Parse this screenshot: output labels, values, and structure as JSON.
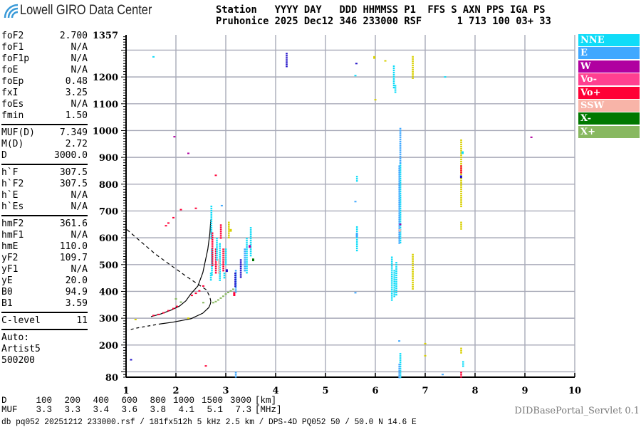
{
  "header": {
    "logo_text": "Lowell GIRO Data Center",
    "line1": "Station   YYYY DAY   DDD HHMMSS P1  FFS S AXN PPS IGA PS",
    "line2": "Pruhonice 2025 Dec12 346 233000 RSF      1 713 100 03+ 33"
  },
  "params": {
    "group1": [
      {
        "k": "foF2",
        "v": "2.700"
      },
      {
        "k": "foF1",
        "v": "N/A"
      },
      {
        "k": "foF1p",
        "v": "N/A"
      },
      {
        "k": "foE",
        "v": "N/A"
      },
      {
        "k": "foEp",
        "v": "0.48"
      },
      {
        "k": "fxI",
        "v": "3.25"
      },
      {
        "k": "foEs",
        "v": "N/A"
      },
      {
        "k": "fmin",
        "v": "1.50"
      }
    ],
    "group2": [
      {
        "k": "MUF(D)",
        "v": "7.349"
      },
      {
        "k": "M(D)",
        "v": "2.72"
      },
      {
        "k": "D",
        "v": "3000.0"
      }
    ],
    "group3": [
      {
        "k": "h`F",
        "v": "307.5"
      },
      {
        "k": "h`F2",
        "v": "307.5"
      },
      {
        "k": "h`E",
        "v": "N/A"
      },
      {
        "k": "h`Es",
        "v": "N/A"
      }
    ],
    "group4": [
      {
        "k": "hmF2",
        "v": "361.6"
      },
      {
        "k": "hmF1",
        "v": "N/A"
      },
      {
        "k": "hmE",
        "v": "110.0"
      },
      {
        "k": "yF2",
        "v": "109.7"
      },
      {
        "k": "yF1",
        "v": "N/A"
      },
      {
        "k": "yE",
        "v": "20.0"
      },
      {
        "k": "B0",
        "v": "94.9"
      },
      {
        "k": "B1",
        "v": "3.59"
      }
    ],
    "clevel": {
      "k": "C-level",
      "v": "11"
    },
    "auto": [
      "Auto:",
      "Artist5",
      "500200"
    ]
  },
  "legend": [
    {
      "label": "NNE",
      "color": "#10dcf8"
    },
    {
      "label": "E",
      "color": "#40a8ff"
    },
    {
      "label": "W",
      "color": "#b000a0"
    },
    {
      "label": "Vo-",
      "color": "#ff4090"
    },
    {
      "label": "Vo+",
      "color": "#ff0036"
    },
    {
      "label": "SSW",
      "color": "#f8b4a8"
    },
    {
      "label": "X-",
      "color": "#007800"
    },
    {
      "label": "X+",
      "color": "#88b860"
    }
  ],
  "extra_colors": {
    "unk": "#d8d000",
    "Wd": "#2010c8"
  },
  "muf_table": {
    "d_label": "D",
    "d_values": [
      "100",
      "200",
      "400",
      "600",
      "800",
      "1000",
      "1500",
      "3000"
    ],
    "d_unit": "[km]",
    "muf_label": "MUF",
    "muf_values": [
      "3.3",
      "3.3",
      "3.4",
      "3.6",
      "3.8",
      "4.1",
      "5.1",
      "7.3"
    ],
    "muf_unit": "[MHz]"
  },
  "footer": {
    "db_line": "db pq052 20251212 233000.rsf / 181fx512h 5 kHz 2.5 km / DPS-4D PQ052 50 / 50.0 N 14.6 E",
    "servlet": "DIDBasePortal_Servlet 0.1"
  },
  "chart_data": {
    "type": "scatter",
    "xlim": [
      1,
      10
    ],
    "ylim": [
      80,
      1357
    ],
    "x_ticks": [
      "1",
      "2",
      "3",
      "4",
      "5",
      "6",
      "7",
      "8",
      "9",
      "10"
    ],
    "y_ticks": [
      "1357",
      "1200",
      "1100",
      "1000",
      "900",
      "800",
      "700",
      "600",
      "500",
      "400",
      "300",
      "200",
      "80"
    ],
    "grid": true,
    "legend_placement": "right",
    "trace_fit": [
      [
        1.5,
        306
      ],
      [
        1.7,
        316
      ],
      [
        1.9,
        330
      ],
      [
        2.07,
        345
      ],
      [
        2.2,
        365
      ],
      [
        2.3,
        391
      ],
      [
        2.44,
        420
      ],
      [
        2.54,
        470
      ],
      [
        2.64,
        558
      ],
      [
        2.68,
        615
      ],
      [
        2.7,
        669
      ]
    ],
    "profile": [
      [
        1.04,
        255
      ],
      [
        1.2,
        263
      ],
      [
        1.44,
        271
      ],
      [
        1.7,
        279
      ],
      [
        1.93,
        285
      ],
      [
        2.3,
        298
      ],
      [
        2.54,
        319
      ],
      [
        2.66,
        340
      ],
      [
        2.69,
        353
      ],
      [
        2.7,
        362
      ]
    ],
    "topside": [
      [
        2.7,
        362
      ],
      [
        2.68,
        380
      ],
      [
        2.61,
        406
      ],
      [
        2.4,
        432
      ],
      [
        2.21,
        456
      ],
      [
        1.9,
        497
      ],
      [
        1.59,
        539
      ],
      [
        1.3,
        585
      ],
      [
        1.01,
        632
      ]
    ],
    "echoes": [
      [
        1.55,
        310,
        310,
        "Vo+"
      ],
      [
        1.65,
        314,
        314,
        "Vo+"
      ],
      [
        1.75,
        320,
        320,
        "Vo+"
      ],
      [
        1.85,
        328,
        328,
        "Vo+"
      ],
      [
        1.95,
        336,
        336,
        "Vo+"
      ],
      [
        2.02,
        344,
        344,
        "Vo+"
      ],
      [
        2.32,
        385,
        385,
        "Vo+"
      ],
      [
        2.4,
        393,
        393,
        "Vo+"
      ],
      [
        2.47,
        402,
        402,
        "Vo+"
      ],
      [
        2.55,
        420,
        420,
        "Vo+"
      ],
      [
        1.8,
        645,
        645,
        "Vo+"
      ],
      [
        1.85,
        655,
        655,
        "Vo+"
      ],
      [
        1.95,
        675,
        675,
        "Vo+"
      ],
      [
        2.1,
        705,
        705,
        "Vo+"
      ],
      [
        2.4,
        710,
        710,
        "Vo+"
      ],
      [
        2.8,
        833,
        833,
        "Vo+"
      ],
      [
        1.97,
        977,
        977,
        "W"
      ],
      [
        2.25,
        915,
        915,
        "W"
      ],
      [
        2.6,
        122,
        122,
        "Vo+"
      ],
      [
        1.19,
        295,
        295,
        "unk"
      ],
      [
        1.1,
        145,
        145,
        "Wd"
      ],
      [
        1.55,
        1275,
        1275,
        "NNE"
      ],
      [
        2.0,
        372,
        372,
        "X+"
      ],
      [
        2.1,
        360,
        360,
        "X+"
      ],
      [
        2.75,
        358,
        358,
        "X+"
      ],
      [
        2.8,
        362,
        362,
        "X+"
      ],
      [
        2.85,
        368,
        368,
        "X+"
      ],
      [
        2.9,
        375,
        375,
        "X+"
      ],
      [
        2.95,
        382,
        382,
        "X+"
      ],
      [
        3.0,
        390,
        390,
        "X+"
      ],
      [
        3.05,
        396,
        396,
        "X+"
      ],
      [
        3.1,
        402,
        402,
        "X+"
      ],
      [
        3.15,
        408,
        408,
        "X+"
      ],
      [
        2.55,
        358,
        358,
        "X+"
      ],
      [
        2.71,
        600,
        720,
        "NNE"
      ],
      [
        2.72,
        460,
        560,
        "NNE"
      ],
      [
        2.7,
        440,
        470,
        "NNE"
      ],
      [
        2.73,
        500,
        620,
        "Vo+"
      ],
      [
        2.8,
        470,
        560,
        "Vo+"
      ],
      [
        2.82,
        520,
        600,
        "NNE"
      ],
      [
        2.88,
        440,
        580,
        "NNE"
      ],
      [
        2.9,
        600,
        650,
        "Vo+"
      ],
      [
        2.95,
        480,
        560,
        "Vo+"
      ],
      [
        2.98,
        520,
        560,
        "SSW"
      ],
      [
        2.97,
        450,
        470,
        "NNE"
      ],
      [
        2.86,
        470,
        520,
        "SSW"
      ],
      [
        2.92,
        720,
        720,
        "E"
      ],
      [
        3.0,
        500,
        560,
        "NNE"
      ],
      [
        3.02,
        470,
        480,
        "Wd"
      ],
      [
        3.06,
        600,
        660,
        "unk"
      ],
      [
        3.1,
        620,
        630,
        "unk"
      ],
      [
        3.2,
        400,
        480,
        "E"
      ],
      [
        3.19,
        420,
        470,
        "Wd"
      ],
      [
        3.17,
        380,
        395,
        "Vo+"
      ],
      [
        3.3,
        450,
        520,
        "Wd"
      ],
      [
        3.38,
        480,
        560,
        "E"
      ],
      [
        3.42,
        470,
        600,
        "NNE"
      ],
      [
        3.5,
        530,
        640,
        "NNE"
      ],
      [
        3.55,
        510,
        520,
        "X-"
      ],
      [
        3.48,
        560,
        570,
        "W"
      ],
      [
        3.2,
        80,
        100,
        "E"
      ],
      [
        2.25,
        300,
        300,
        "unk"
      ],
      [
        4.22,
        1235,
        1290,
        "Wd"
      ],
      [
        5.6,
        735,
        735,
        "E"
      ],
      [
        5.63,
        810,
        831,
        "NNE"
      ],
      [
        5.63,
        553,
        643,
        "NNE"
      ],
      [
        5.63,
        600,
        615,
        "E"
      ],
      [
        5.6,
        395,
        395,
        "E"
      ],
      [
        5.6,
        1205,
        1205,
        "NNE"
      ],
      [
        5.62,
        1250,
        1250,
        "Wd"
      ],
      [
        5.98,
        1265,
        1275,
        "unk"
      ],
      [
        6.0,
        1115,
        1115,
        "unk"
      ],
      [
        6.2,
        1260,
        1260,
        "unk"
      ],
      [
        6.37,
        1163,
        1243,
        "NNE"
      ],
      [
        6.4,
        1140,
        1170,
        "NNE"
      ],
      [
        6.33,
        370,
        530,
        "NNE"
      ],
      [
        6.38,
        380,
        480,
        "NNE"
      ],
      [
        6.42,
        390,
        510,
        "NNE"
      ],
      [
        6.5,
        584,
        880,
        "NNE"
      ],
      [
        6.48,
        580,
        870,
        "E"
      ],
      [
        6.5,
        880,
        1010,
        "E"
      ],
      [
        6.49,
        620,
        630,
        "SSW"
      ],
      [
        6.5,
        645,
        650,
        "W"
      ],
      [
        6.5,
        80,
        170,
        "NNE"
      ],
      [
        6.48,
        80,
        130,
        "E"
      ],
      [
        6.48,
        215,
        215,
        "E"
      ],
      [
        6.75,
        1195,
        1278,
        "unk"
      ],
      [
        6.75,
        412,
        540,
        "unk"
      ],
      [
        7.0,
        200,
        205,
        "unk"
      ],
      [
        7.0,
        160,
        160,
        "unk"
      ],
      [
        7.72,
        717,
        967,
        "unk"
      ],
      [
        7.72,
        840,
        870,
        "Vo+"
      ],
      [
        7.72,
        820,
        830,
        "Wd"
      ],
      [
        7.75,
        910,
        920,
        "NNE"
      ],
      [
        7.72,
        630,
        660,
        "unk"
      ],
      [
        7.72,
        170,
        190,
        "unk"
      ],
      [
        7.76,
        120,
        140,
        "NNE"
      ],
      [
        7.72,
        80,
        100,
        "Vo+"
      ],
      [
        7.4,
        1200,
        1200,
        "NNE"
      ],
      [
        7.35,
        90,
        90,
        "E"
      ],
      [
        9.13,
        975,
        975,
        "W"
      ]
    ]
  }
}
